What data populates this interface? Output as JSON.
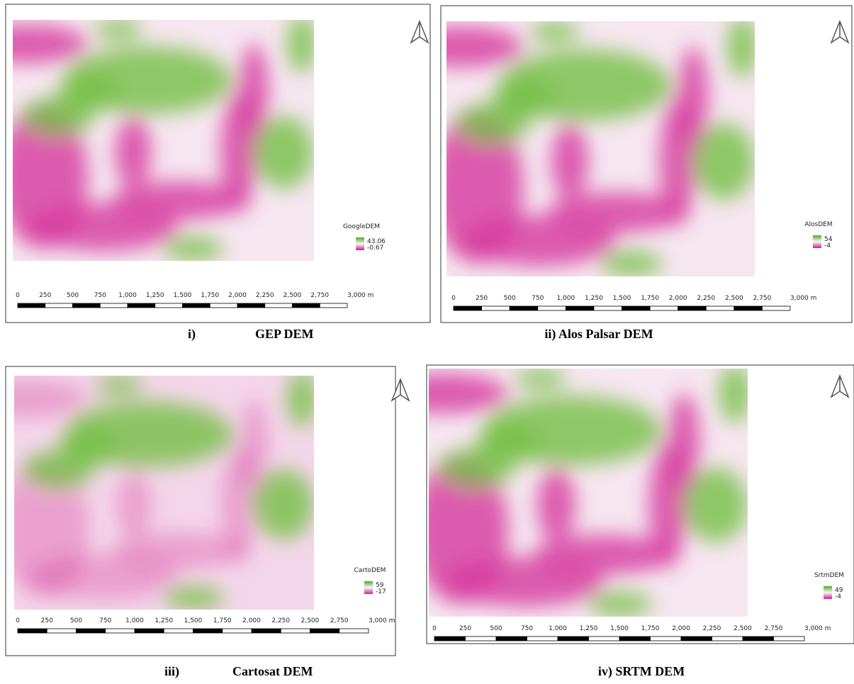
{
  "scale_bar": {
    "labels": [
      "0",
      "250",
      "500",
      "750",
      "1,000",
      "1,250",
      "1,500",
      "1,750",
      "2,000",
      "2,250",
      "2,500",
      "2,750",
      "3,000 m"
    ]
  },
  "panels": [
    {
      "legend": {
        "title": "GoogleDEM",
        "max": "43.06",
        "min": "-0.67"
      },
      "caption": {
        "number": "i)",
        "text": "GEP DEM"
      }
    },
    {
      "legend": {
        "title": "AlosDEM",
        "max": "54",
        "min": "-4"
      },
      "caption": {
        "number": "ii)",
        "text": "Alos Palsar DEM"
      }
    },
    {
      "legend": {
        "title": "CartoDEM",
        "max": "59",
        "min": "-17"
      },
      "caption": {
        "number": "iii)",
        "text": "Cartosat DEM"
      }
    },
    {
      "legend": {
        "title": "SrtmDEM",
        "max": "49",
        "min": "-4"
      },
      "caption": {
        "number": "iv)",
        "text": "SRTM DEM"
      }
    }
  ]
}
